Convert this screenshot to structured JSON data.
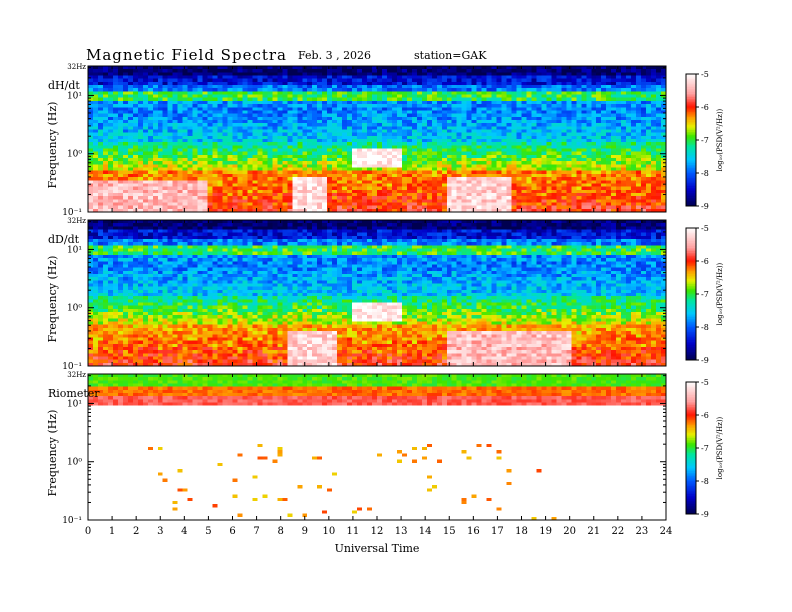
{
  "header": {
    "title": "Magnetic  Field  Spectra",
    "date": "Feb. 3  , 2026",
    "station": "station=GAK"
  },
  "chart_data": [
    {
      "type": "heatmap",
      "panel_label": "dH/dt",
      "ylabel": "Frequency  (Hz)",
      "yscale": "log",
      "ylim": [
        0.1,
        32
      ],
      "ytick_labels": [
        "10⁻¹",
        "10⁰",
        "10¹"
      ],
      "top_tick_label": "32Hz",
      "colorbar": {
        "label": "log₁₀(PSD(V²/Hz))",
        "range": [
          -9,
          -5
        ],
        "tick_labels": [
          "-5",
          "-6",
          "-7",
          "-8",
          "-9"
        ]
      },
      "features": [
        {
          "name": "broadband-low",
          "x_start": 0,
          "x_end": 24,
          "f_low": 0.1,
          "f_high": 0.5,
          "level": -6.3
        },
        {
          "name": "patch-a",
          "x_start": 0,
          "x_end": 5,
          "f_low": 0.1,
          "f_high": 0.35,
          "level": -5.4
        },
        {
          "name": "patch-b",
          "x_start": 8.5,
          "x_end": 10,
          "f_low": 0.1,
          "f_high": 0.4,
          "level": -5.2
        },
        {
          "name": "patch-c",
          "x_start": 15,
          "x_end": 17.5,
          "f_low": 0.1,
          "f_high": 0.4,
          "level": -5.3
        },
        {
          "name": "burst",
          "x_start": 11,
          "x_end": 13,
          "f_low": 0.6,
          "f_high": 1.3,
          "level": -5.1
        }
      ]
    },
    {
      "type": "heatmap",
      "panel_label": "dD/dt",
      "ylabel": "Frequency  (Hz)",
      "yscale": "log",
      "ylim": [
        0.1,
        32
      ],
      "ytick_labels": [
        "10⁻¹",
        "10⁰",
        "10¹"
      ],
      "top_tick_label": "32Hz",
      "colorbar": {
        "label": "log₁₀(PSD(V²/Hz))",
        "range": [
          -9,
          -5
        ],
        "tick_labels": [
          "-5",
          "-6",
          "-7",
          "-8",
          "-9"
        ]
      },
      "features": [
        {
          "name": "broadband-low",
          "x_start": 0,
          "x_end": 24,
          "f_low": 0.1,
          "f_high": 0.5,
          "level": -6.4
        },
        {
          "name": "patch-b",
          "x_start": 8.3,
          "x_end": 10.3,
          "f_low": 0.1,
          "f_high": 0.4,
          "level": -5.3
        },
        {
          "name": "patch-c",
          "x_start": 14.8,
          "x_end": 20,
          "f_low": 0.1,
          "f_high": 0.4,
          "level": -5.4
        },
        {
          "name": "burst",
          "x_start": 11,
          "x_end": 13,
          "f_low": 0.55,
          "f_high": 1.2,
          "level": -5.1
        }
      ]
    },
    {
      "type": "heatmap",
      "panel_label": "Riometer",
      "ylabel": "Frequency  (Hz)",
      "yscale": "log",
      "ylim": [
        0.1,
        32
      ],
      "ytick_labels": [
        "10⁻¹",
        "10⁰",
        "10¹"
      ],
      "top_tick_label": "32Hz",
      "colorbar": {
        "label": "log₁₀(PSD(V²/Hz))",
        "range": [
          -9,
          -5
        ],
        "tick_labels": [
          "-5",
          "-6",
          "-7",
          "-8",
          "-9"
        ]
      },
      "features": [
        {
          "name": "high-band",
          "x_start": 0,
          "x_end": 24,
          "f_low": 10,
          "f_high": 32,
          "level": -6.5
        }
      ]
    }
  ],
  "xaxis": {
    "label": "Universal Time",
    "xlim": [
      0,
      24
    ],
    "tick_labels": [
      "0",
      "1",
      "2",
      "3",
      "4",
      "5",
      "6",
      "7",
      "8",
      "9",
      "10",
      "11",
      "12",
      "13",
      "14",
      "15",
      "16",
      "17",
      "18",
      "19",
      "20",
      "21",
      "22",
      "23",
      "24"
    ]
  }
}
